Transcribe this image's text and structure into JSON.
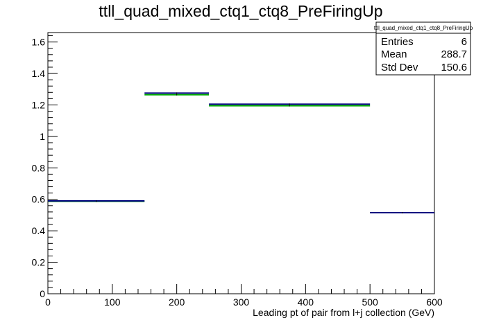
{
  "chart_data": {
    "type": "histogram",
    "title": "ttll_quad_mixed_ctq1_ctq8_PreFiringUp",
    "xlabel": "Leading pt of pair from l+j collection (GeV)",
    "ylabel": "",
    "xlim": [
      0,
      600
    ],
    "ylim": [
      0,
      1.66
    ],
    "x_ticks": [
      0,
      100,
      200,
      300,
      400,
      500,
      600
    ],
    "y_ticks": [
      0,
      0.2,
      0.4,
      0.6,
      0.8,
      1,
      1.2,
      1.4,
      1.6
    ],
    "bins": [
      {
        "low": 0,
        "high": 150,
        "value": 0.59
      },
      {
        "low": 150,
        "high": 250,
        "value": 1.275
      },
      {
        "low": 250,
        "high": 500,
        "value": 1.205
      },
      {
        "low": 500,
        "high": 600,
        "value": 0.515
      }
    ],
    "series": [
      {
        "color": "#000080",
        "values": [
          0.59,
          1.275,
          1.205,
          0.515
        ]
      },
      {
        "color": "#00aa00",
        "values": [
          0.587,
          1.265,
          1.195,
          0.515
        ]
      }
    ],
    "stats": {
      "name": "ttll_quad_mixed_ctq1_ctq8_PreFiringUp",
      "entries_label": "Entries",
      "entries_value": "6",
      "mean_label": "Mean",
      "mean_value": "288.7",
      "std_label": "Std Dev",
      "std_value": "150.6"
    },
    "grid": false,
    "legend": "none"
  }
}
